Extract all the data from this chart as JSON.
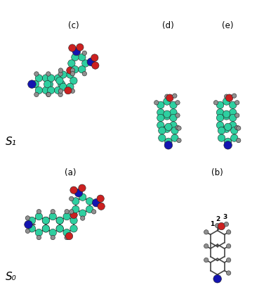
{
  "bg": "#ffffff",
  "atom_colors": {
    "C": "#2ecfa0",
    "H": "#909090",
    "N": "#1414b0",
    "O": "#cc2020"
  },
  "bond_color": "#444444",
  "bond_lw": 1.2,
  "labels": {
    "s0": "S₀",
    "s1": "S₁",
    "a": "(a)",
    "b": "(b)",
    "c": "(c)",
    "d": "(d)",
    "e": "(e)"
  },
  "r_C": 5.2,
  "r_H": 3.2,
  "r_N": 5.8,
  "r_O": 5.2,
  "fig_w": 3.86,
  "fig_h": 4.05,
  "dpi": 100
}
